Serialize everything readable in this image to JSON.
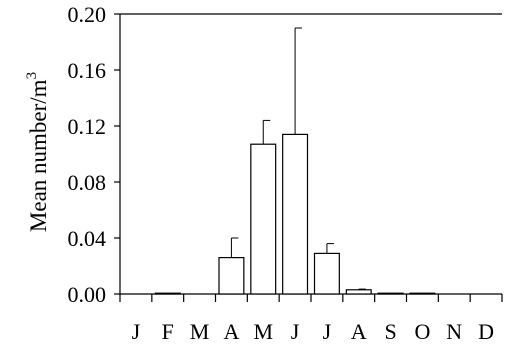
{
  "chart_data": {
    "type": "bar",
    "title": "",
    "xlabel": "",
    "ylabel": "Mean number/m",
    "ylabel_superscript": "3",
    "categories": [
      "J",
      "F",
      "M",
      "A",
      "M",
      "J",
      "J",
      "A",
      "S",
      "O",
      "N",
      "D"
    ],
    "values": [
      0,
      0.0005,
      0,
      0.026,
      0.107,
      0.114,
      0.029,
      0.003,
      0.0005,
      0.0005,
      0,
      0
    ],
    "error_upper": [
      0,
      0,
      0,
      0.04,
      0.124,
      0.19,
      0.036,
      0.0035,
      0,
      0,
      0,
      0
    ],
    "ylim": [
      0,
      0.2
    ],
    "yticks": [
      "0.00",
      "0.04",
      "0.08",
      "0.12",
      "0.16",
      "0.20"
    ],
    "grid": false,
    "bar_fill": "#ffffff",
    "bar_stroke": "#000000"
  }
}
